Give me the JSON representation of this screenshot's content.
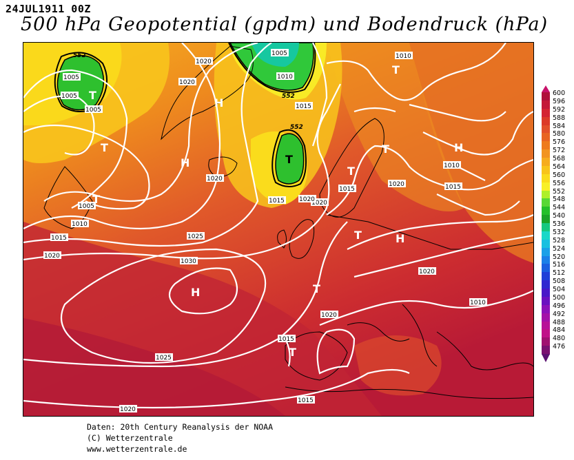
{
  "header": {
    "date": "24JUL1911 00Z",
    "title": "500 hPa Geopotential (gpdm) und Bodendruck (hPa)"
  },
  "footer": {
    "line1": "Daten: 20th Century Reanalysis der NOAA",
    "line2": "(C) Wetterzentrale",
    "line3": "www.wetterzentrale.de"
  },
  "colorbar": {
    "levels": [
      "600",
      "596",
      "592",
      "588",
      "584",
      "580",
      "576",
      "572",
      "568",
      "564",
      "560",
      "556",
      "552",
      "548",
      "544",
      "540",
      "536",
      "532",
      "528",
      "524",
      "520",
      "516",
      "512",
      "508",
      "504",
      "500",
      "496",
      "492",
      "488",
      "484",
      "480",
      "476"
    ],
    "colors": [
      "#b0103c",
      "#c41838",
      "#d42432",
      "#dc3a28",
      "#e2502a",
      "#e86422",
      "#ee7a1c",
      "#f29420",
      "#f6ac1e",
      "#f8c41a",
      "#fadc1c",
      "#f8f028",
      "#aef02a",
      "#58d836",
      "#24c02a",
      "#1aa428",
      "#16c880",
      "#18d8c8",
      "#18c0e0",
      "#1aa0e8",
      "#1a80e8",
      "#1a60e0",
      "#2040d8",
      "#3028d0",
      "#4818c8",
      "#6a10c0",
      "#8c10b8",
      "#a410a8",
      "#b81098",
      "#c01088",
      "#a01070",
      "#7a1070"
    ]
  },
  "map_labels": {
    "pressure_isolines": [
      "1005",
      "1010",
      "1015",
      "1020",
      "1025",
      "1030"
    ],
    "geopotential_label": "552",
    "high_symbol": "H",
    "low_symbol": "T",
    "isobar_labels": [
      {
        "text": "1005"
      },
      {
        "text": "1005"
      },
      {
        "text": "1020"
      },
      {
        "text": "1020"
      },
      {
        "text": "1005"
      },
      {
        "text": "1010"
      },
      {
        "text": "1015"
      },
      {
        "text": "1010"
      },
      {
        "text": "1020"
      },
      {
        "text": "1015"
      },
      {
        "text": "1020"
      },
      {
        "text": "1015"
      },
      {
        "text": "1005"
      },
      {
        "text": "1010"
      },
      {
        "text": "1015"
      },
      {
        "text": "1010"
      },
      {
        "text": "1015"
      },
      {
        "text": "1020"
      },
      {
        "text": "1025"
      },
      {
        "text": "1030"
      },
      {
        "text": "1020"
      },
      {
        "text": "1020"
      },
      {
        "text": "1010"
      },
      {
        "text": "1020"
      },
      {
        "text": "1015"
      },
      {
        "text": "1025"
      },
      {
        "text": "1015"
      },
      {
        "text": "1020"
      },
      {
        "text": "1005"
      },
      {
        "text": "1020"
      }
    ],
    "geopotential_labels": [
      {
        "text": "552"
      },
      {
        "text": "552"
      },
      {
        "text": "552"
      }
    ],
    "pressure_centers": [
      {
        "text": "T"
      },
      {
        "text": "T"
      },
      {
        "text": "T"
      },
      {
        "text": "T"
      },
      {
        "text": "T"
      },
      {
        "text": "T"
      },
      {
        "text": "T"
      },
      {
        "text": "T"
      },
      {
        "text": "T"
      },
      {
        "text": "H"
      },
      {
        "text": "H"
      },
      {
        "text": "H"
      },
      {
        "text": "H"
      },
      {
        "text": "H"
      },
      {
        "text": "T"
      }
    ]
  }
}
